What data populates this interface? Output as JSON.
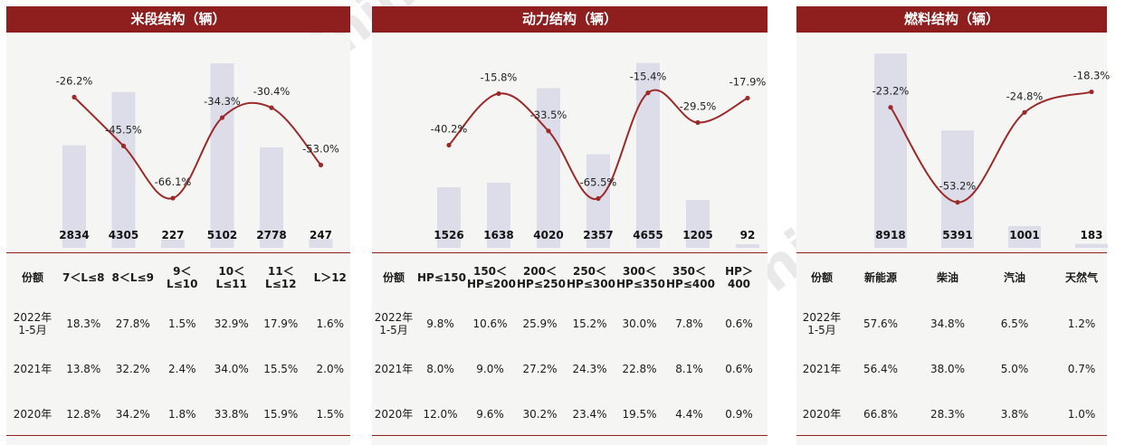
{
  "watermark": {
    "text": "Auto Thinker",
    "cn": "汽 车 智 库 平 台"
  },
  "colors": {
    "header": "#8f1f1f",
    "bar": "#dcdde8",
    "line": "#9b2b2b"
  },
  "charts": [
    {
      "title": "米段结构（辆）",
      "table": {
        "header": [
          "份额",
          "7＜L≤8",
          "8＜L≤9",
          "9＜L≤10",
          "10＜L≤11",
          "11＜L≤12",
          "L＞12"
        ],
        "rows": [
          [
            "2022年1-5月",
            "18.3%",
            "27.8%",
            "1.5%",
            "32.9%",
            "17.9%",
            "1.6%"
          ],
          [
            "2021年",
            "13.8%",
            "32.2%",
            "2.4%",
            "34.0%",
            "15.5%",
            "2.0%"
          ],
          [
            "2020年",
            "12.8%",
            "34.2%",
            "1.8%",
            "33.8%",
            "15.9%",
            "1.5%"
          ]
        ]
      }
    },
    {
      "title": "动力结构（辆）",
      "table": {
        "header": [
          "份额",
          "HP≤150",
          "150＜HP≤200",
          "200＜HP≤250",
          "250＜HP≤300",
          "300＜HP≤350",
          "350＜HP≤400",
          "HP＞400"
        ],
        "rows": [
          [
            "2022年1-5月",
            "9.8%",
            "10.6%",
            "25.9%",
            "15.2%",
            "30.0%",
            "7.8%",
            "0.6%"
          ],
          [
            "2021年",
            "8.0%",
            "9.0%",
            "27.2%",
            "24.3%",
            "22.8%",
            "8.1%",
            "0.6%"
          ],
          [
            "2020年",
            "12.0%",
            "9.6%",
            "30.2%",
            "23.4%",
            "19.5%",
            "4.4%",
            "0.9%"
          ]
        ]
      }
    },
    {
      "title": "燃料结构（辆）",
      "table": {
        "header": [
          "份额",
          "新能源",
          "柴油",
          "汽油",
          "天然气"
        ],
        "rows": [
          [
            "2022年1-5月",
            "57.6%",
            "34.8%",
            "6.5%",
            "1.2%"
          ],
          [
            "2021年",
            "56.4%",
            "38.0%",
            "5.0%",
            "0.7%"
          ],
          [
            "2020年",
            "66.8%",
            "28.3%",
            "3.8%",
            "1.0%"
          ]
        ]
      }
    }
  ],
  "chart_data": [
    {
      "type": "bar",
      "title": "米段结构（辆）",
      "categories": [
        "7＜L≤8",
        "8＜L≤9",
        "9＜L≤10",
        "10＜L≤11",
        "11＜L≤12",
        "L＞12"
      ],
      "series": [
        {
          "type": "bar",
          "values": [
            2834,
            4305,
            227,
            5102,
            2778,
            247
          ],
          "value_labels": [
            "2834",
            "4305",
            "227",
            "5102",
            "2778",
            "247"
          ]
        },
        {
          "type": "line",
          "values": [
            -26.2,
            -45.5,
            -66.1,
            -34.3,
            -30.4,
            -53.0
          ],
          "value_labels": [
            "-26.2%",
            "-45.5%",
            "-66.1%",
            "-34.3%",
            "-30.4%",
            "-53.0%"
          ]
        }
      ],
      "ylim_bar": [
        0,
        5600
      ],
      "ylim_line": [
        -70,
        -20
      ],
      "grid": false
    },
    {
      "type": "bar",
      "title": "动力结构（辆）",
      "categories": [
        "HP≤150",
        "150＜HP≤200",
        "200＜HP≤250",
        "250＜HP≤300",
        "300＜HP≤350",
        "350＜HP≤400",
        "HP＞400"
      ],
      "series": [
        {
          "type": "bar",
          "values": [
            1526,
            1638,
            4020,
            2357,
            4655,
            1205,
            92
          ],
          "value_labels": [
            "1526",
            "1638",
            "4020",
            "2357",
            "4655",
            "1205",
            "92"
          ]
        },
        {
          "type": "line",
          "values": [
            -40.2,
            -15.8,
            -33.5,
            -65.5,
            -15.4,
            -29.5,
            -17.9
          ],
          "value_labels": [
            "-40.2%",
            "-15.8%",
            "-33.5%",
            "-65.5%",
            "-15.4%",
            "-29.5%",
            "-17.9%"
          ]
        }
      ],
      "ylim_bar": [
        0,
        5100
      ],
      "ylim_line": [
        -70,
        -10
      ],
      "grid": false
    },
    {
      "type": "bar",
      "title": "燃料结构（辆）",
      "categories": [
        "新能源",
        "柴油",
        "汽油",
        "天然气"
      ],
      "series": [
        {
          "type": "bar",
          "values": [
            8918,
            5391,
            1001,
            183
          ],
          "value_labels": [
            "8918",
            "5391",
            "1001",
            "183"
          ]
        },
        {
          "type": "line",
          "values": [
            -23.2,
            -53.2,
            -24.8,
            -18.3
          ],
          "value_labels": [
            "-23.2%",
            "-53.2%",
            "-24.8%",
            "-18.3%"
          ]
        }
      ],
      "ylim_bar": [
        0,
        9300
      ],
      "ylim_line": [
        -55,
        -15
      ],
      "grid": false
    }
  ]
}
